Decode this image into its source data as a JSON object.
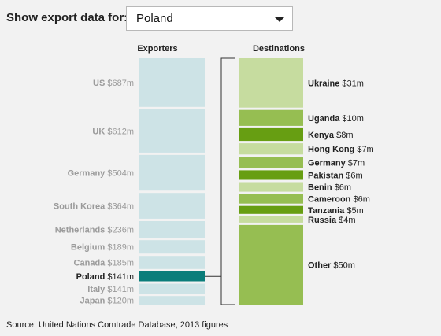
{
  "header": {
    "label": "Show export data for:"
  },
  "selector": {
    "value": "Poland",
    "arrow_icon": "chevron-down-icon"
  },
  "source": "Source: United Nations Comtrade Database, 2013 figures",
  "colors": {
    "exporter": "#cde3e6",
    "exporter_selected": "#0a7d7a",
    "exporter_text": "#9b9b9b",
    "dest_light": "#c6dc9f",
    "dest_medium": "#96be52",
    "dest_dark": "#679e12"
  },
  "chart_data": [
    {
      "type": "bar",
      "xlabel": "Exporters",
      "unit": "$m",
      "categories": [
        "US",
        "UK",
        "Germany",
        "South Korea",
        "Netherlands",
        "Belgium",
        "Canada",
        "Poland",
        "Italy",
        "Japan"
      ],
      "values": [
        687,
        612,
        504,
        364,
        236,
        189,
        185,
        141,
        141,
        120
      ],
      "value_labels": [
        "$687m",
        "$612m",
        "$504m",
        "$364m",
        "$236m",
        "$189m",
        "$185m",
        "$141m",
        "$141m",
        "$120m"
      ],
      "selected": "Poland"
    },
    {
      "type": "bar",
      "xlabel": "Destinations",
      "unit": "$m",
      "categories": [
        "Ukraine",
        "Uganda",
        "Kenya",
        "Hong Kong",
        "Germany",
        "Pakistan",
        "Benin",
        "Cameroon",
        "Tanzania",
        "Russia",
        "Other"
      ],
      "values": [
        31,
        10,
        8,
        7,
        7,
        6,
        6,
        6,
        5,
        4,
        50
      ],
      "value_labels": [
        "$31m",
        "$10m",
        "$8m",
        "$7m",
        "$7m",
        "$6m",
        "$6m",
        "$6m",
        "$5m",
        "$4m",
        "$50m"
      ],
      "shades": [
        "light",
        "medium",
        "dark",
        "light",
        "medium",
        "dark",
        "light",
        "medium",
        "dark",
        "light",
        "medium"
      ]
    }
  ]
}
